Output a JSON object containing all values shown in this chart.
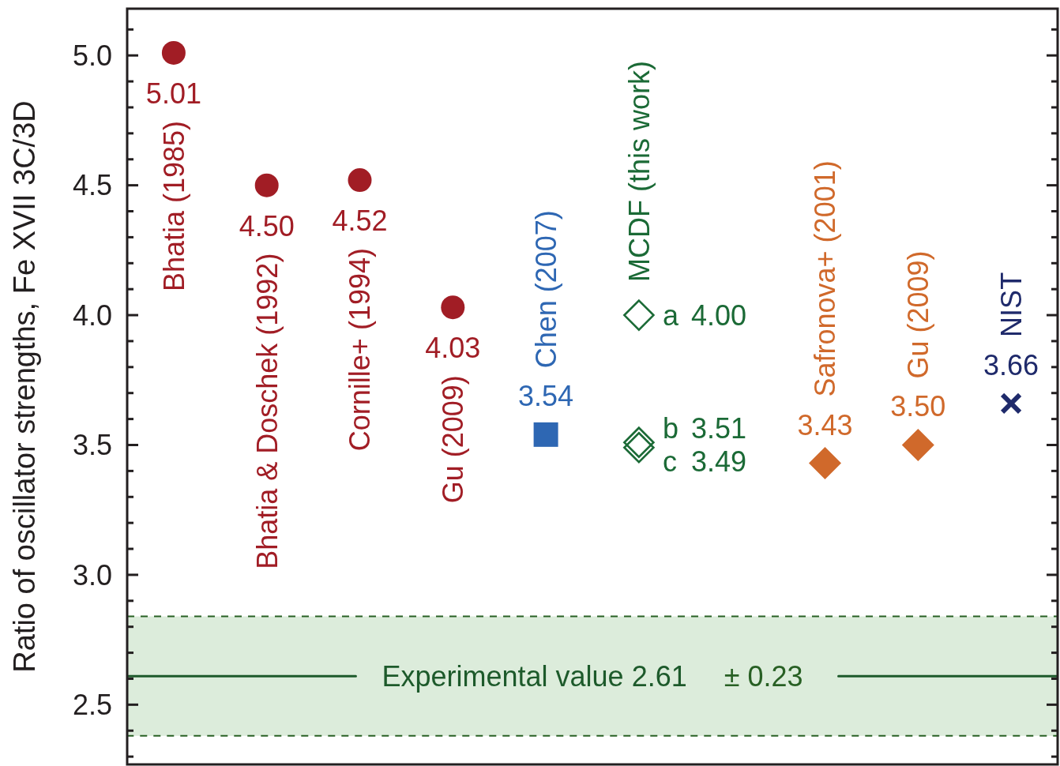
{
  "chart_data": {
    "type": "scatter",
    "categories": [
      "Bhatia (1985)",
      "Bhatia & Doschek (1992)",
      "Cornille+ (1994)",
      "Gu (2009)",
      "Chen (2007)",
      "MCDF (this work)",
      null,
      "Safronova+ (2001)",
      "Gu (2009)",
      "NIST"
    ],
    "ylabel": "Ratio of oscillator strengths, Fe XVII 3C/3D",
    "ylim": [
      2.27,
      5.18
    ],
    "yticks": [
      {
        "value": 2.3,
        "label": null
      },
      {
        "value": 2.4,
        "label": null
      },
      2.5,
      {
        "value": 2.6,
        "label": null
      },
      {
        "value": 2.7,
        "label": null
      },
      {
        "value": 2.8,
        "label": null
      },
      {
        "value": 2.9,
        "label": null
      },
      {
        "value": 3,
        "label": "3.0"
      },
      {
        "value": 3.1,
        "label": null
      },
      {
        "value": 3.2,
        "label": null
      },
      {
        "value": 3.3,
        "label": null
      },
      {
        "value": 3.4,
        "label": null
      },
      3.5,
      {
        "value": 3.6,
        "label": null
      },
      {
        "value": 3.7,
        "label": null
      },
      {
        "value": 3.8,
        "label": null
      },
      {
        "value": 3.9,
        "label": null
      },
      {
        "value": 4,
        "label": "4.0"
      },
      {
        "value": 4.1,
        "label": null
      },
      {
        "value": 4.2,
        "label": null
      },
      {
        "value": 4.3,
        "label": null
      },
      {
        "value": 4.4,
        "label": null
      },
      4.5,
      {
        "value": 4.6,
        "label": null
      },
      {
        "value": 4.7,
        "label": null
      },
      {
        "value": 4.8,
        "label": null
      },
      {
        "value": 4.9,
        "label": null
      },
      {
        "value": 5,
        "label": "5.0"
      },
      {
        "value": 5.1,
        "label": null
      }
    ],
    "series": [
      {
        "color": "#a11d25",
        "marker": "circle",
        "values": [
          5.01,
          4.5,
          4.52,
          4.03,
          null,
          null,
          null,
          null,
          null,
          null
        ],
        "value_labels": [
          "5.01",
          "4.50",
          "4.52",
          "4.03",
          null,
          null,
          null,
          null,
          null,
          null
        ]
      },
      {
        "color": "#2e67b3",
        "marker": "square",
        "values": [
          null,
          null,
          null,
          null,
          3.54,
          null,
          null,
          null,
          null,
          null
        ],
        "value_labels": [
          null,
          null,
          null,
          null,
          "3.54",
          null,
          null,
          null,
          null,
          null
        ]
      },
      {
        "name": "a",
        "color": "#1b6a36",
        "marker": "diamond",
        "values": [
          null,
          null,
          null,
          null,
          null,
          4.0,
          null,
          null,
          null,
          null
        ],
        "value_labels": [
          null,
          null,
          null,
          null,
          null,
          "4.00",
          null,
          null,
          null,
          null
        ]
      },
      {
        "name": "b",
        "color": "#1b6a36",
        "marker": "diamond",
        "values": [
          null,
          null,
          null,
          null,
          null,
          3.51,
          null,
          null,
          null,
          null
        ],
        "value_labels": [
          null,
          null,
          null,
          null,
          null,
          "3.51",
          null,
          null,
          null,
          null
        ]
      },
      {
        "name": "c",
        "color": "#1b6a36",
        "marker": "diamond",
        "values": [
          null,
          null,
          null,
          null,
          null,
          3.49,
          null,
          null,
          null,
          null
        ],
        "value_labels": [
          null,
          null,
          null,
          null,
          null,
          "3.49",
          null,
          null,
          null,
          null
        ]
      },
      {
        "color": "#d0692b",
        "marker": "diamond",
        "values": [
          null,
          null,
          null,
          null,
          null,
          null,
          null,
          3.43,
          3.5,
          null
        ],
        "value_labels": [
          null,
          null,
          null,
          null,
          null,
          null,
          null,
          "3.43",
          "3.50",
          null
        ]
      },
      {
        "color": "#1f2a6b",
        "marker": "cross",
        "values": [
          null,
          null,
          null,
          null,
          null,
          null,
          null,
          null,
          null,
          3.66
        ],
        "value_labels": [
          null,
          null,
          null,
          null,
          null,
          null,
          null,
          null,
          null,
          "3.66"
        ]
      }
    ],
    "ref_lines": [
      {
        "axis": "y",
        "value": 2.61,
        "label": "Experimental value 2.61",
        "color": "#1d5a2b"
      }
    ],
    "bands": [
      {
        "axis": "y",
        "from": 2.38,
        "to": 2.84,
        "label": "± 0.23",
        "color": "#dcecdb"
      }
    ]
  }
}
